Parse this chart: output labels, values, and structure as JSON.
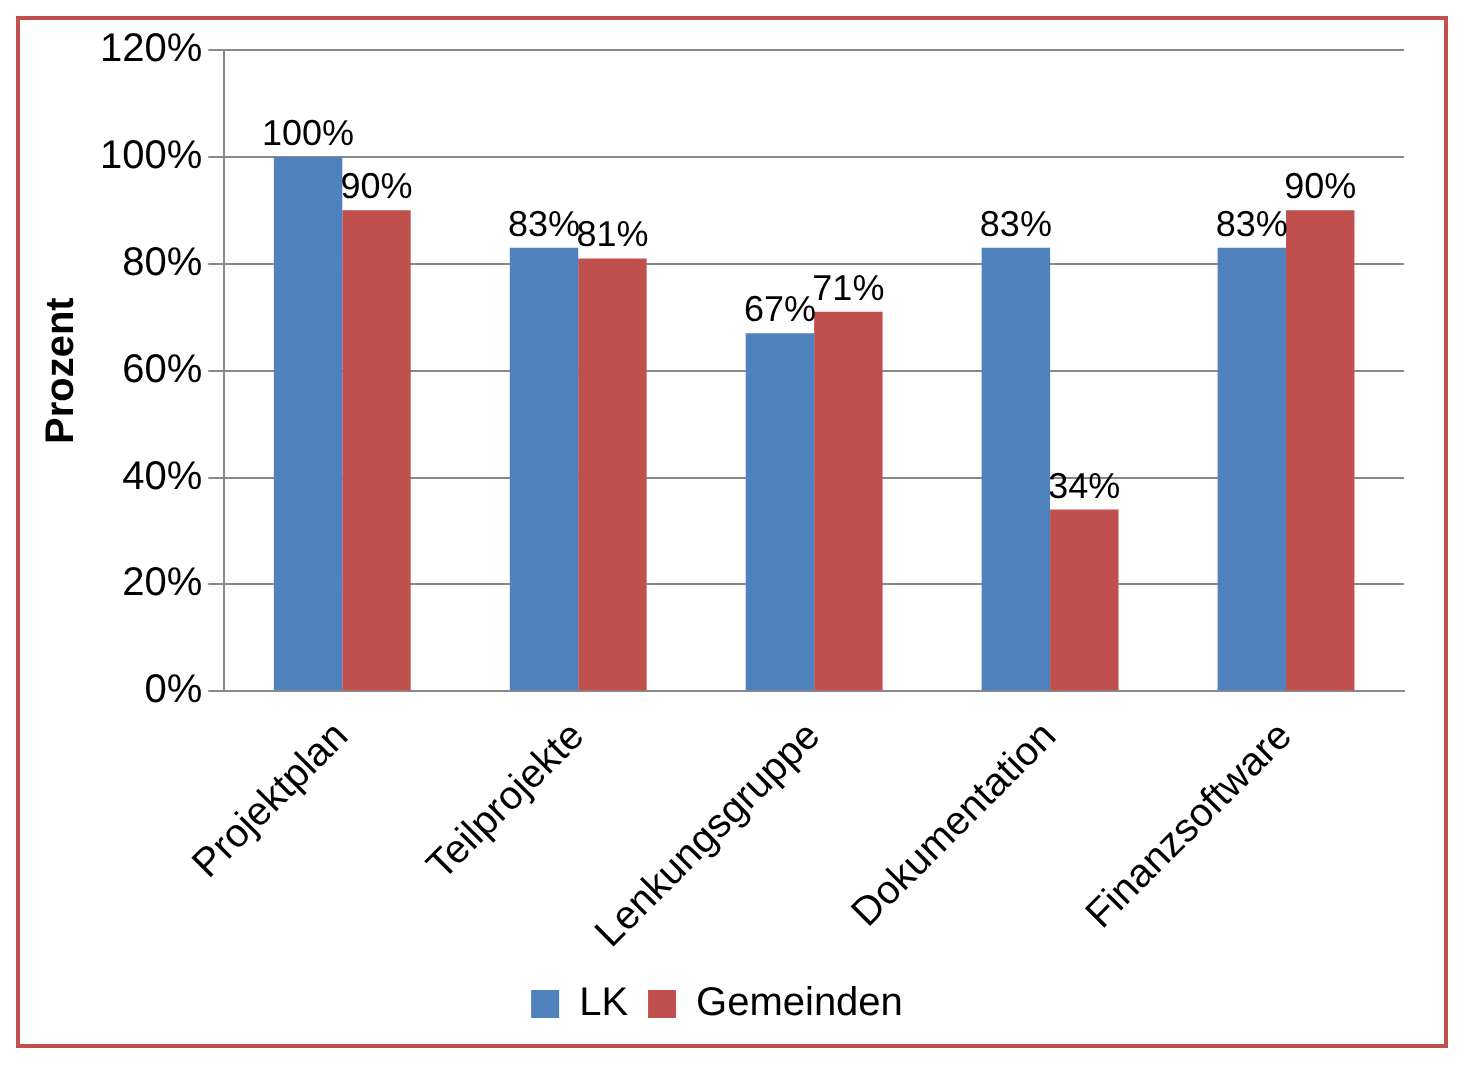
{
  "chart_data": {
    "type": "bar",
    "ylabel": "Prozent",
    "categories": [
      "Projektplan",
      "Teilprojekte",
      "Lenkungsgruppe",
      "Dokumentation",
      "Finanzsoftware"
    ],
    "series": [
      {
        "name": "LK",
        "color": "#4f81bd",
        "values": [
          100,
          83,
          67,
          83,
          83
        ],
        "value_labels": [
          "100%",
          "83%",
          "67%",
          "83%",
          "83%"
        ]
      },
      {
        "name": "Gemeinden",
        "color": "#c0504d",
        "values": [
          90,
          81,
          71,
          34,
          90
        ],
        "value_labels": [
          "90%",
          "81%",
          "71%",
          "34%",
          "90%"
        ]
      }
    ],
    "ylim": [
      0,
      120
    ],
    "yticks": [
      {
        "value": 0,
        "label": "0%"
      },
      {
        "value": 20,
        "label": "20%"
      },
      {
        "value": 40,
        "label": "40%"
      },
      {
        "value": 60,
        "label": "60%"
      },
      {
        "value": 80,
        "label": "80%"
      },
      {
        "value": 100,
        "label": "100%"
      },
      {
        "value": 120,
        "label": "120%"
      }
    ],
    "grid": "y",
    "legend": "bottom"
  }
}
